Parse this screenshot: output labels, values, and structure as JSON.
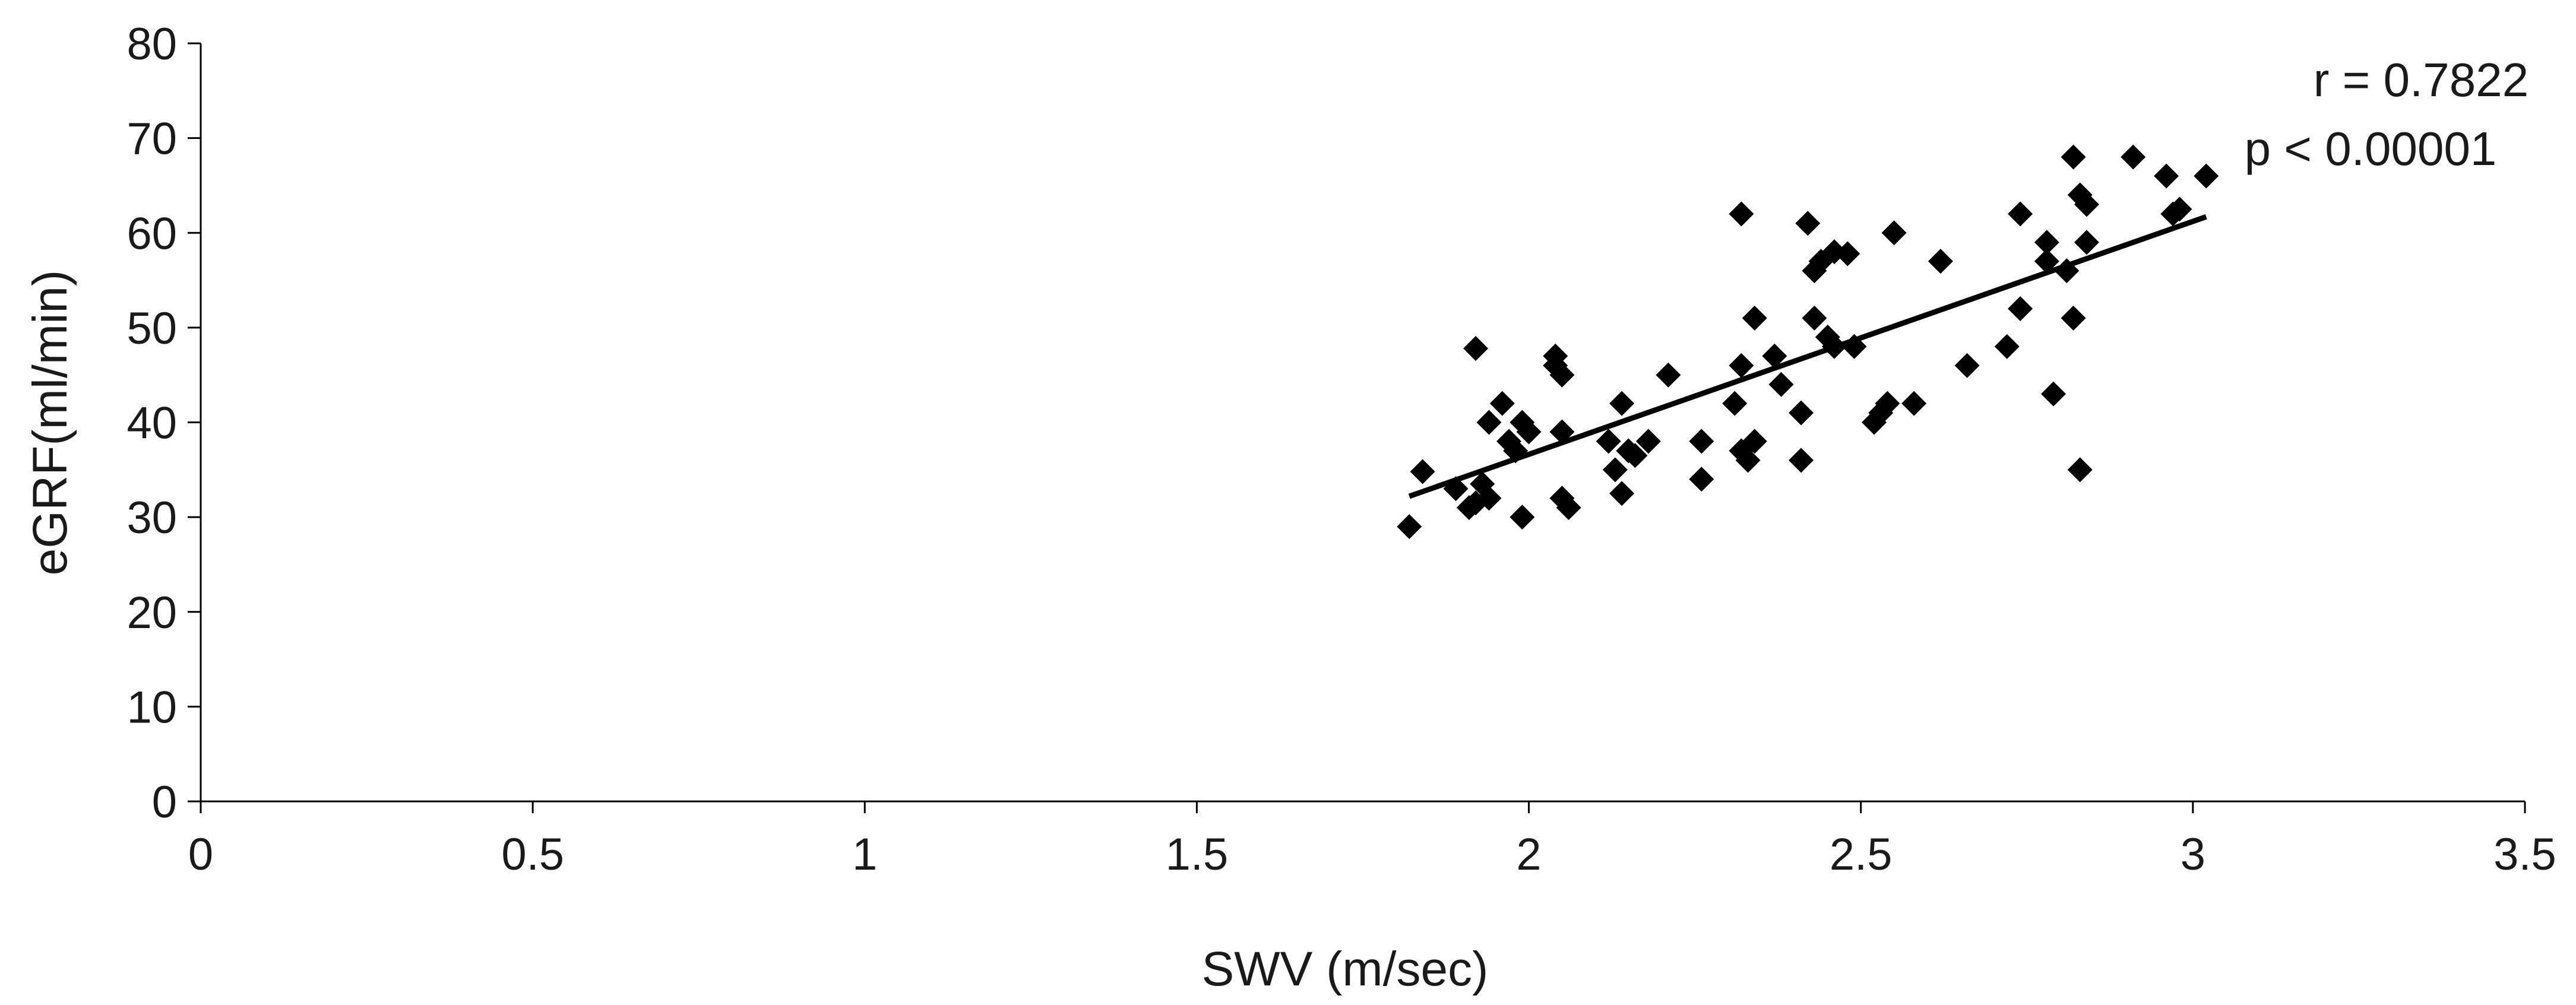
{
  "chart_data": {
    "type": "scatter",
    "title": "",
    "xlabel": "SWV (m/sec)",
    "ylabel": "eGRF(ml/min)",
    "xlim": [
      0,
      3.5
    ],
    "ylim": [
      0,
      80
    ],
    "x_ticks": [
      0,
      0.5,
      1,
      1.5,
      2,
      2.5,
      3,
      3.5
    ],
    "x_tick_labels": [
      "0",
      "0.5",
      "1",
      "1.5",
      "2",
      "2.5",
      "3",
      "3.5"
    ],
    "y_ticks": [
      0,
      10,
      20,
      30,
      40,
      50,
      60,
      70,
      80
    ],
    "y_tick_labels": [
      "0",
      "10",
      "20",
      "30",
      "40",
      "50",
      "60",
      "70",
      "80"
    ],
    "grid": false,
    "marker": "diamond",
    "marker_color": "#000000",
    "annotations": [
      "r = 0.7822",
      "p < 0.00001"
    ],
    "trendline": {
      "x": [
        1.82,
        3.02
      ],
      "y": [
        32.2,
        61.7
      ]
    },
    "series": [
      {
        "points": [
          [
            1.82,
            29.0
          ],
          [
            1.84,
            34.8
          ],
          [
            1.89,
            33.0
          ],
          [
            1.91,
            31.0
          ],
          [
            1.92,
            31.5
          ],
          [
            1.92,
            47.8
          ],
          [
            1.93,
            33.5
          ],
          [
            1.94,
            40.0
          ],
          [
            1.94,
            32.0
          ],
          [
            1.96,
            42.0
          ],
          [
            1.97,
            38.0
          ],
          [
            1.98,
            37.0
          ],
          [
            1.99,
            30.0
          ],
          [
            1.99,
            40.0
          ],
          [
            2.0,
            39.0
          ],
          [
            2.04,
            47.0
          ],
          [
            2.04,
            46.0
          ],
          [
            2.05,
            45.0
          ],
          [
            2.05,
            39.0
          ],
          [
            2.05,
            32.0
          ],
          [
            2.06,
            31.0
          ],
          [
            2.12,
            38.0
          ],
          [
            2.13,
            35.0
          ],
          [
            2.14,
            42.0
          ],
          [
            2.14,
            32.5
          ],
          [
            2.15,
            37.0
          ],
          [
            2.16,
            36.5
          ],
          [
            2.18,
            38.0
          ],
          [
            2.21,
            45.0
          ],
          [
            2.26,
            38.0
          ],
          [
            2.26,
            34.0
          ],
          [
            2.31,
            42.0
          ],
          [
            2.32,
            62.0
          ],
          [
            2.32,
            46.0
          ],
          [
            2.32,
            37.0
          ],
          [
            2.33,
            36.0
          ],
          [
            2.34,
            38.0
          ],
          [
            2.34,
            51.0
          ],
          [
            2.37,
            47.0
          ],
          [
            2.38,
            44.0
          ],
          [
            2.41,
            36.0
          ],
          [
            2.41,
            41.0
          ],
          [
            2.42,
            61.0
          ],
          [
            2.43,
            56.0
          ],
          [
            2.43,
            51.0
          ],
          [
            2.44,
            57.0
          ],
          [
            2.45,
            49.0
          ],
          [
            2.46,
            58.0
          ],
          [
            2.46,
            48.0
          ],
          [
            2.48,
            57.8
          ],
          [
            2.49,
            48.0
          ],
          [
            2.52,
            40.0
          ],
          [
            2.53,
            41.0
          ],
          [
            2.54,
            42.0
          ],
          [
            2.55,
            60.0
          ],
          [
            2.58,
            42.0
          ],
          [
            2.62,
            57.0
          ],
          [
            2.66,
            46.0
          ],
          [
            2.72,
            48.0
          ],
          [
            2.74,
            62.0
          ],
          [
            2.74,
            52.0
          ],
          [
            2.78,
            59.0
          ],
          [
            2.78,
            57.0
          ],
          [
            2.79,
            43.0
          ],
          [
            2.81,
            56.0
          ],
          [
            2.82,
            68.0
          ],
          [
            2.82,
            51.0
          ],
          [
            2.83,
            64.0
          ],
          [
            2.83,
            35.0
          ],
          [
            2.84,
            63.0
          ],
          [
            2.84,
            59.0
          ],
          [
            2.91,
            68.0
          ],
          [
            2.96,
            66.0
          ],
          [
            2.97,
            62.0
          ],
          [
            2.98,
            62.5
          ],
          [
            3.02,
            66.0
          ]
        ]
      }
    ]
  }
}
